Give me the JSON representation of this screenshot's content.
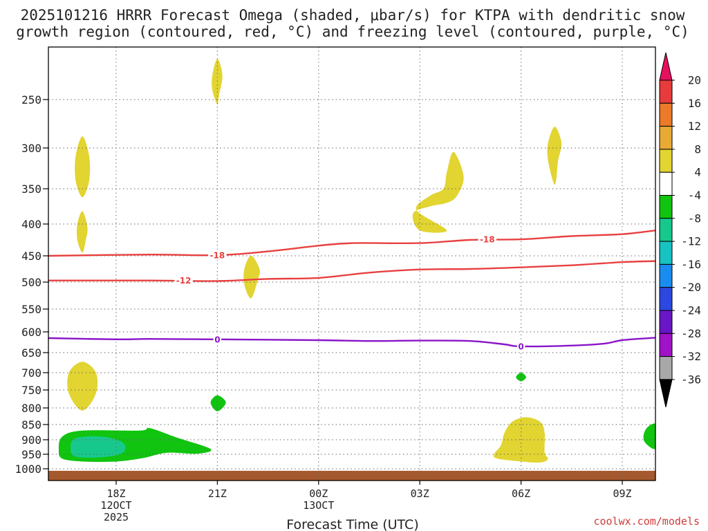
{
  "chart_data": {
    "type": "contour",
    "title_line1": "2025101216 HRRR Forecast Omega (shaded, μbar/s) for KTPA with dendritic snow",
    "title_line2": "growth region (contoured, red, °C) and freezing level (contoured, purple, °C)",
    "xlabel": "Forecast Time (UTC)",
    "credit": "coolwx.com/models",
    "x_range_hours": [
      -2.0,
      16.0
    ],
    "x_ticks": [
      {
        "hour": 0,
        "labels": [
          "18Z",
          "12OCT",
          "2025"
        ]
      },
      {
        "hour": 3,
        "labels": [
          "21Z"
        ]
      },
      {
        "hour": 6,
        "labels": [
          "00Z",
          "13OCT"
        ]
      },
      {
        "hour": 9,
        "labels": [
          "03Z"
        ]
      },
      {
        "hour": 12,
        "labels": [
          "06Z"
        ]
      },
      {
        "hour": 15,
        "labels": [
          "09Z"
        ]
      }
    ],
    "y_range_hpa": [
      200,
      1030
    ],
    "y_ticks": [
      250,
      300,
      350,
      400,
      450,
      500,
      550,
      600,
      650,
      700,
      750,
      800,
      850,
      900,
      950,
      1000
    ],
    "colorbar": {
      "levels": [
        "20",
        "16",
        "12",
        "8",
        "4",
        "-4",
        "-8",
        "-12",
        "-16",
        "-20",
        "-24",
        "-28",
        "-32",
        "-36"
      ],
      "colors": [
        "#e8105e",
        "#e83c3c",
        "#ec7a28",
        "#e8a935",
        "#e2d431",
        "#ffffff",
        "#10c410",
        "#17c88d",
        "#17c2c2",
        "#1a8cf0",
        "#2c48e0",
        "#6a16c6",
        "#a012c6",
        "#a8a8a8",
        "#000000"
      ]
    },
    "ground": {
      "color": "#a45a2e",
      "top_hpa": 1007
    },
    "contours": [
      {
        "name": "dendritic-minus18",
        "label": "-18",
        "color": "#e84040",
        "points": [
          [
            -2.0,
            450
          ],
          [
            1.0,
            448
          ],
          [
            3.0,
            449
          ],
          [
            4.5,
            443
          ],
          [
            6.0,
            434
          ],
          [
            7.0,
            430
          ],
          [
            9.0,
            430
          ],
          [
            10.5,
            425
          ],
          [
            12.0,
            424
          ],
          [
            13.5,
            419
          ],
          [
            15.0,
            416
          ],
          [
            16.0,
            410
          ]
        ],
        "label_at": [
          [
            3.0,
            449
          ],
          [
            11.0,
            424
          ]
        ]
      },
      {
        "name": "dendritic-minus12",
        "label": "-12",
        "color": "#e84040",
        "points": [
          [
            -2.0,
            497
          ],
          [
            1.0,
            497
          ],
          [
            3.0,
            498
          ],
          [
            4.5,
            494
          ],
          [
            6.0,
            492
          ],
          [
            7.5,
            482
          ],
          [
            9.0,
            476
          ],
          [
            10.5,
            475
          ],
          [
            12.0,
            472
          ],
          [
            13.5,
            468
          ],
          [
            15.0,
            462
          ],
          [
            16.0,
            460
          ]
        ],
        "label_at": [
          [
            2.0,
            497
          ]
        ]
      },
      {
        "name": "freezing-level-0",
        "label": "0",
        "color": "#8a14c8",
        "points": [
          [
            -2.0,
            615
          ],
          [
            0.0,
            618
          ],
          [
            1.0,
            617
          ],
          [
            3.0,
            618
          ],
          [
            6.0,
            620
          ],
          [
            7.5,
            622
          ],
          [
            9.0,
            621
          ],
          [
            10.5,
            622
          ],
          [
            11.5,
            630
          ],
          [
            12.0,
            635
          ],
          [
            13.5,
            633
          ],
          [
            14.5,
            628
          ],
          [
            15.0,
            620
          ],
          [
            16.0,
            614
          ]
        ],
        "label_at": [
          [
            3.0,
            618
          ],
          [
            12.0,
            635
          ]
        ]
      }
    ],
    "regions": [
      {
        "name": "omega-4to8-a",
        "color": "#e2d431",
        "points": [
          [
            -1.0,
            288
          ],
          [
            -0.8,
            310
          ],
          [
            -0.8,
            340
          ],
          [
            -1.0,
            362
          ],
          [
            -1.2,
            340
          ],
          [
            -1.2,
            310
          ]
        ]
      },
      {
        "name": "omega-4to8-b",
        "color": "#e2d431",
        "points": [
          [
            -1.0,
            382
          ],
          [
            -0.85,
            405
          ],
          [
            -0.9,
            425
          ],
          [
            -1.0,
            445
          ],
          [
            -1.15,
            425
          ],
          [
            -1.15,
            400
          ]
        ]
      },
      {
        "name": "omega-4to8-c",
        "color": "#e2d431",
        "points": [
          [
            3.0,
            208
          ],
          [
            3.15,
            225
          ],
          [
            3.05,
            245
          ],
          [
            3.0,
            255
          ],
          [
            2.85,
            240
          ],
          [
            2.85,
            225
          ]
        ]
      },
      {
        "name": "omega-4to8-d",
        "color": "#e2d431",
        "points": [
          [
            4.0,
            450
          ],
          [
            4.25,
            475
          ],
          [
            4.2,
            495
          ],
          [
            4.0,
            530
          ],
          [
            3.8,
            505
          ],
          [
            3.8,
            475
          ]
        ]
      },
      {
        "name": "omega-4to8-e",
        "color": "#e2d431",
        "points": [
          [
            9.8,
            410
          ],
          [
            9.0,
            410
          ],
          [
            8.8,
            385
          ],
          [
            9.3,
            375
          ],
          [
            9.8,
            370
          ],
          [
            10.1,
            360
          ],
          [
            10.3,
            335
          ],
          [
            10.0,
            305
          ],
          [
            9.8,
            330
          ],
          [
            9.7,
            350
          ],
          [
            9.3,
            360
          ],
          [
            8.9,
            380
          ]
        ]
      },
      {
        "name": "omega-4to8-f",
        "color": "#e2d431",
        "points": [
          [
            13.0,
            278
          ],
          [
            13.2,
            295
          ],
          [
            13.1,
            315
          ],
          [
            13.0,
            345
          ],
          [
            12.8,
            315
          ],
          [
            12.8,
            295
          ]
        ]
      },
      {
        "name": "omega-4to8-g",
        "color": "#e2d431",
        "points": [
          [
            -1.0,
            673
          ],
          [
            -0.6,
            700
          ],
          [
            -0.6,
            760
          ],
          [
            -1.0,
            808
          ],
          [
            -1.4,
            760
          ],
          [
            -1.4,
            700
          ]
        ]
      },
      {
        "name": "omega-4to8-h",
        "color": "#e2d431",
        "points": [
          [
            12.3,
            830
          ],
          [
            12.6,
            845
          ],
          [
            12.7,
            880
          ],
          [
            12.7,
            945
          ],
          [
            12.8,
            965
          ],
          [
            12.6,
            978
          ],
          [
            12.0,
            975
          ],
          [
            11.3,
            965
          ],
          [
            11.2,
            950
          ],
          [
            11.4,
            920
          ],
          [
            11.5,
            880
          ],
          [
            11.7,
            845
          ],
          [
            12.0,
            830
          ]
        ]
      },
      {
        "name": "omega-minus4to8-a",
        "color": "#10c410",
        "points": [
          [
            1.0,
            862
          ],
          [
            0.7,
            870
          ],
          [
            -1.0,
            870
          ],
          [
            -1.6,
            890
          ],
          [
            -1.7,
            935
          ],
          [
            -1.6,
            965
          ],
          [
            -1.0,
            975
          ],
          [
            0.0,
            975
          ],
          [
            0.8,
            963
          ],
          [
            1.5,
            945
          ],
          [
            2.4,
            948
          ],
          [
            2.8,
            932
          ],
          [
            1.8,
            893
          ]
        ]
      },
      {
        "name": "omega-minus4to8-b",
        "color": "#10c410",
        "points": [
          [
            3.0,
            765
          ],
          [
            3.25,
            785
          ],
          [
            3.0,
            810
          ],
          [
            2.8,
            785
          ]
        ]
      },
      {
        "name": "omega-minus4to8-c",
        "color": "#10c410",
        "points": [
          [
            12.0,
            700
          ],
          [
            12.15,
            713
          ],
          [
            12.0,
            725
          ],
          [
            11.85,
            713
          ]
        ]
      },
      {
        "name": "omega-minus4to8-d",
        "color": "#10c410",
        "points": [
          [
            16.0,
            850
          ],
          [
            15.7,
            865
          ],
          [
            15.65,
            905
          ],
          [
            16.0,
            930
          ]
        ]
      },
      {
        "name": "omega-minus8to12-a",
        "color": "#17c88d",
        "points": [
          [
            -1.2,
            895
          ],
          [
            -0.4,
            890
          ],
          [
            0.2,
            910
          ],
          [
            0.2,
            945
          ],
          [
            -0.4,
            960
          ],
          [
            -1.2,
            958
          ],
          [
            -1.35,
            928
          ]
        ]
      }
    ]
  }
}
